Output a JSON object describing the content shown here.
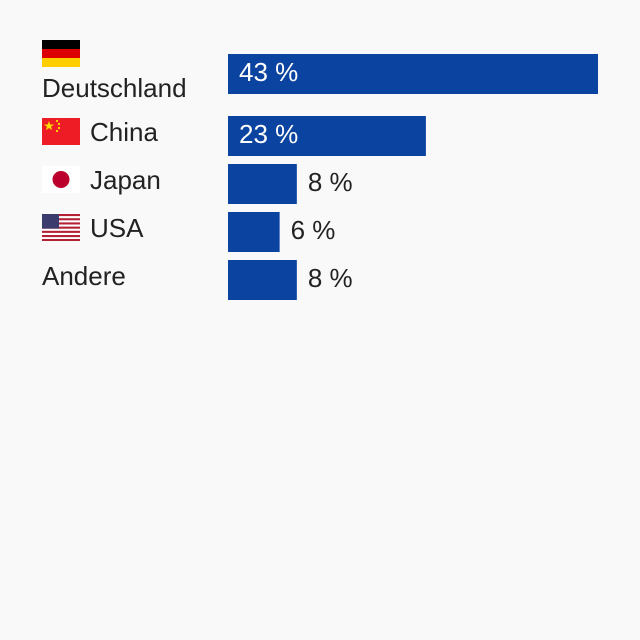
{
  "chart_data": {
    "type": "bar",
    "orientation": "horizontal",
    "categories": [
      "Deutschland",
      "China",
      "Japan",
      "USA",
      "Andere"
    ],
    "values": [
      43,
      23,
      8,
      6,
      8
    ],
    "value_labels": [
      "43 %",
      "23 %",
      "8 %",
      "6 %",
      "8 %"
    ],
    "color": "#0a43a0"
  }
}
